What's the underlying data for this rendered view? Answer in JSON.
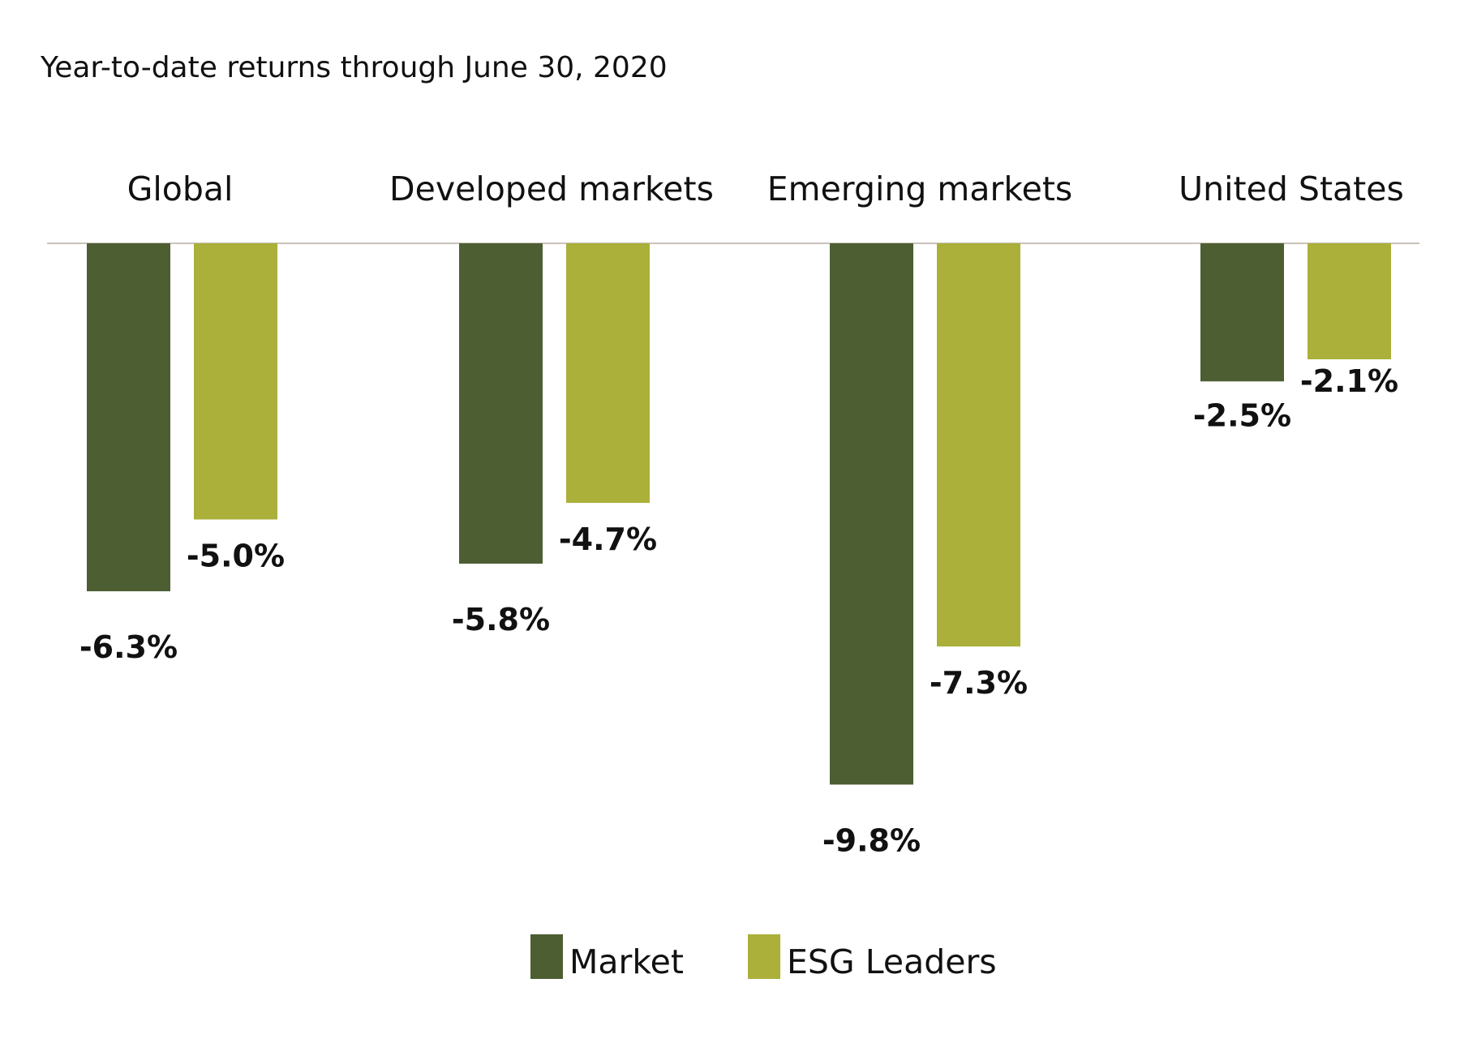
{
  "chart_data": {
    "type": "bar",
    "title": "Year-to-date returns through June 30, 2020",
    "xlabel": "",
    "ylabel": "",
    "categories": [
      "Global",
      "Developed markets",
      "Emerging markets",
      "United States"
    ],
    "series": [
      {
        "name": "Market",
        "color": "#4d5e33",
        "values": [
          -6.3,
          -5.8,
          -9.8,
          -2.5
        ],
        "labels": [
          "-6.3%",
          "-5.8%",
          "-9.8%",
          "-2.5%"
        ]
      },
      {
        "name": "ESG Leaders",
        "color": "#aab03a",
        "values": [
          -5.0,
          -4.7,
          -7.3,
          -2.1
        ],
        "labels": [
          "-5.0%",
          "-4.7%",
          "-7.3%",
          "-2.1%"
        ]
      }
    ],
    "ylim": [
      -10,
      0
    ],
    "grid": false,
    "axis_line_color": "#c8c3bb",
    "legend": {
      "placement": "bottom-center",
      "entries": [
        "Market",
        "ESG Leaders"
      ]
    }
  }
}
